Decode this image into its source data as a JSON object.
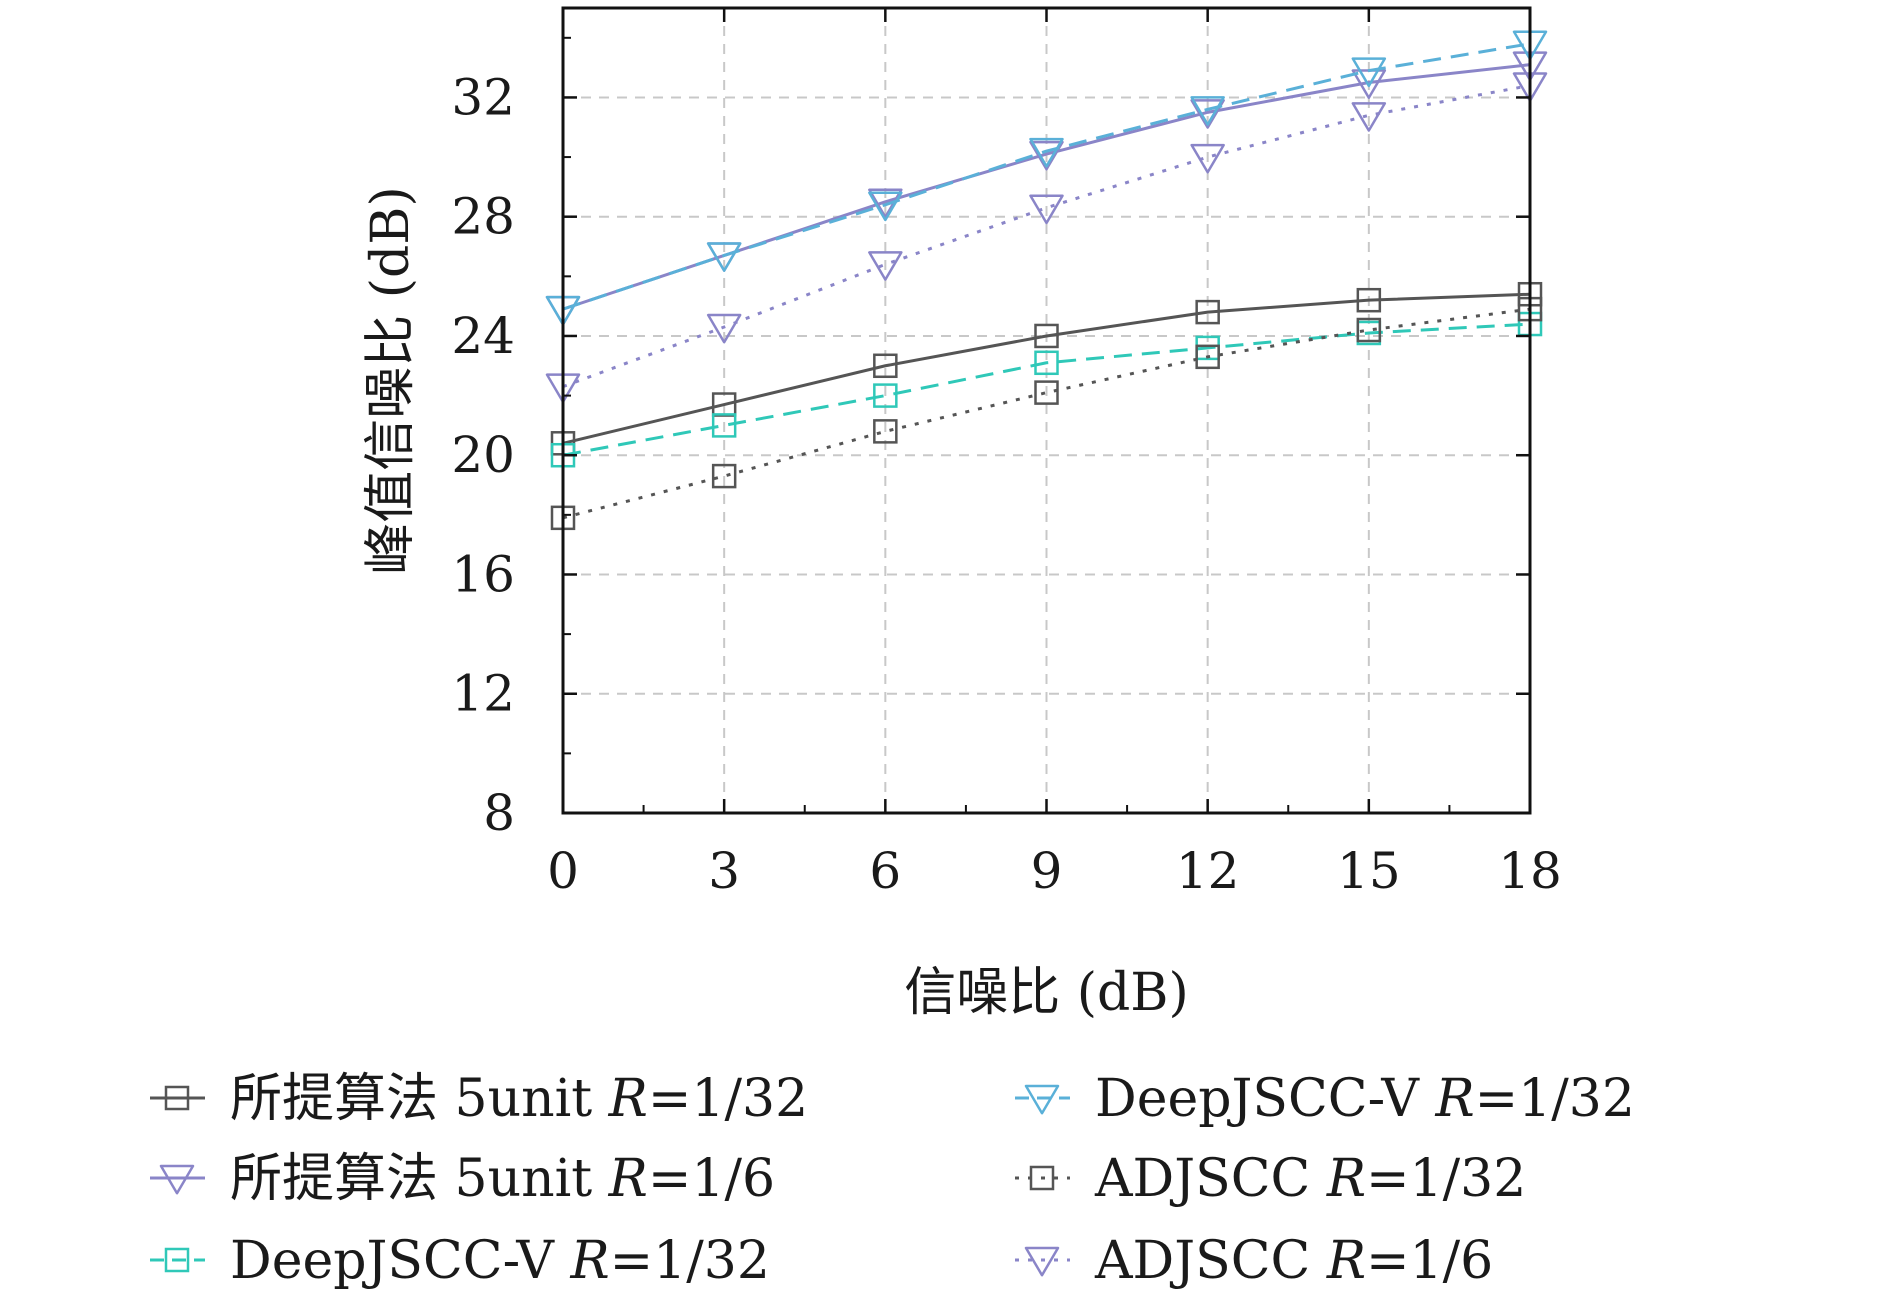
{
  "chart_data": {
    "type": "line",
    "title": "",
    "xlabel": "信噪比 (dB)",
    "ylabel": "峰值信噪比 (dB)",
    "x": [
      0,
      3,
      6,
      9,
      12,
      15,
      18
    ],
    "x_ticks": [
      "0",
      "3",
      "6",
      "9",
      "12",
      "15",
      "18"
    ],
    "y_ticks": [
      "8",
      "12",
      "16",
      "20",
      "24",
      "28",
      "32"
    ],
    "xlim": [
      0,
      18
    ],
    "ylim": [
      8,
      35
    ],
    "grid": true,
    "legend_position": "bottom",
    "series": [
      {
        "name": "所提算法 5unit R=1/32",
        "values": [
          20.4,
          21.7,
          23.0,
          24.0,
          24.8,
          25.2,
          25.4
        ],
        "color": "#555555",
        "dash": "solid",
        "marker": "square"
      },
      {
        "name": "所提算法 5unit R=1/6",
        "values": [
          24.9,
          26.7,
          28.5,
          30.1,
          31.5,
          32.5,
          33.1
        ],
        "color": "#8a85c8",
        "dash": "solid",
        "marker": "triangle-down"
      },
      {
        "name": "DeepJSCC-V R=1/32",
        "values": [
          20.0,
          21.0,
          22.0,
          23.1,
          23.6,
          24.1,
          24.4
        ],
        "color": "#2fc8b8",
        "dash": "dashed",
        "marker": "square"
      },
      {
        "name": "DeepJSCC-V R=1/32",
        "values": [
          24.9,
          26.7,
          28.4,
          30.2,
          31.6,
          32.9,
          33.8
        ],
        "color": "#5ab0d8",
        "dash": "dashed",
        "marker": "triangle-down"
      },
      {
        "name": "ADJSCC R=1/32",
        "values": [
          17.9,
          19.3,
          20.8,
          22.1,
          23.3,
          24.2,
          24.9
        ],
        "color": "#555555",
        "dash": "dotted",
        "marker": "square"
      },
      {
        "name": "ADJSCC R=1/6",
        "values": [
          22.3,
          24.3,
          26.4,
          28.3,
          30.0,
          31.4,
          32.4
        ],
        "color": "#8a85c8",
        "dash": "dotted",
        "marker": "triangle-down"
      }
    ],
    "legend": [
      {
        "prefix": "所提算法 5unit ",
        "r_label": "R",
        "r_value": "=1/32"
      },
      {
        "prefix": "DeepJSCC-V ",
        "r_label": "R",
        "r_value": "=1/32"
      },
      {
        "prefix": "所提算法 5unit ",
        "r_label": "R",
        "r_value": "=1/6"
      },
      {
        "prefix": "ADJSCC ",
        "r_label": "R",
        "r_value": "=1/32"
      },
      {
        "prefix": "DeepJSCC-V ",
        "r_label": "R",
        "r_value": "=1/32"
      },
      {
        "prefix": "ADJSCC ",
        "r_label": "R",
        "r_value": "=1/6"
      }
    ]
  }
}
